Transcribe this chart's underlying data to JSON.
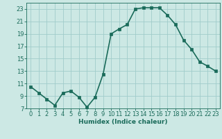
{
  "x": [
    0,
    1,
    2,
    3,
    4,
    5,
    6,
    7,
    8,
    9,
    10,
    11,
    12,
    13,
    14,
    15,
    16,
    17,
    18,
    19,
    20,
    21,
    22,
    23
  ],
  "y": [
    10.5,
    9.5,
    8.5,
    7.5,
    9.5,
    9.8,
    8.8,
    7.2,
    8.8,
    12.5,
    19.0,
    19.8,
    20.5,
    23.0,
    23.2,
    23.2,
    23.2,
    22.0,
    20.5,
    18.0,
    16.5,
    14.5,
    13.8,
    13.0
  ],
  "line_color": "#1a6b5a",
  "marker": "s",
  "marker_size": 2.2,
  "bg_color": "#cce8e4",
  "grid_color": "#a0ccca",
  "xlabel": "Humidex (Indice chaleur)",
  "xlabel_fontsize": 6.5,
  "tick_fontsize": 6.0,
  "ylim": [
    7,
    24
  ],
  "xlim": [
    -0.5,
    23.5
  ],
  "yticks": [
    7,
    9,
    11,
    13,
    15,
    17,
    19,
    21,
    23
  ],
  "xticks": [
    0,
    1,
    2,
    3,
    4,
    5,
    6,
    7,
    8,
    9,
    10,
    11,
    12,
    13,
    14,
    15,
    16,
    17,
    18,
    19,
    20,
    21,
    22,
    23
  ],
  "line_width": 1.2
}
